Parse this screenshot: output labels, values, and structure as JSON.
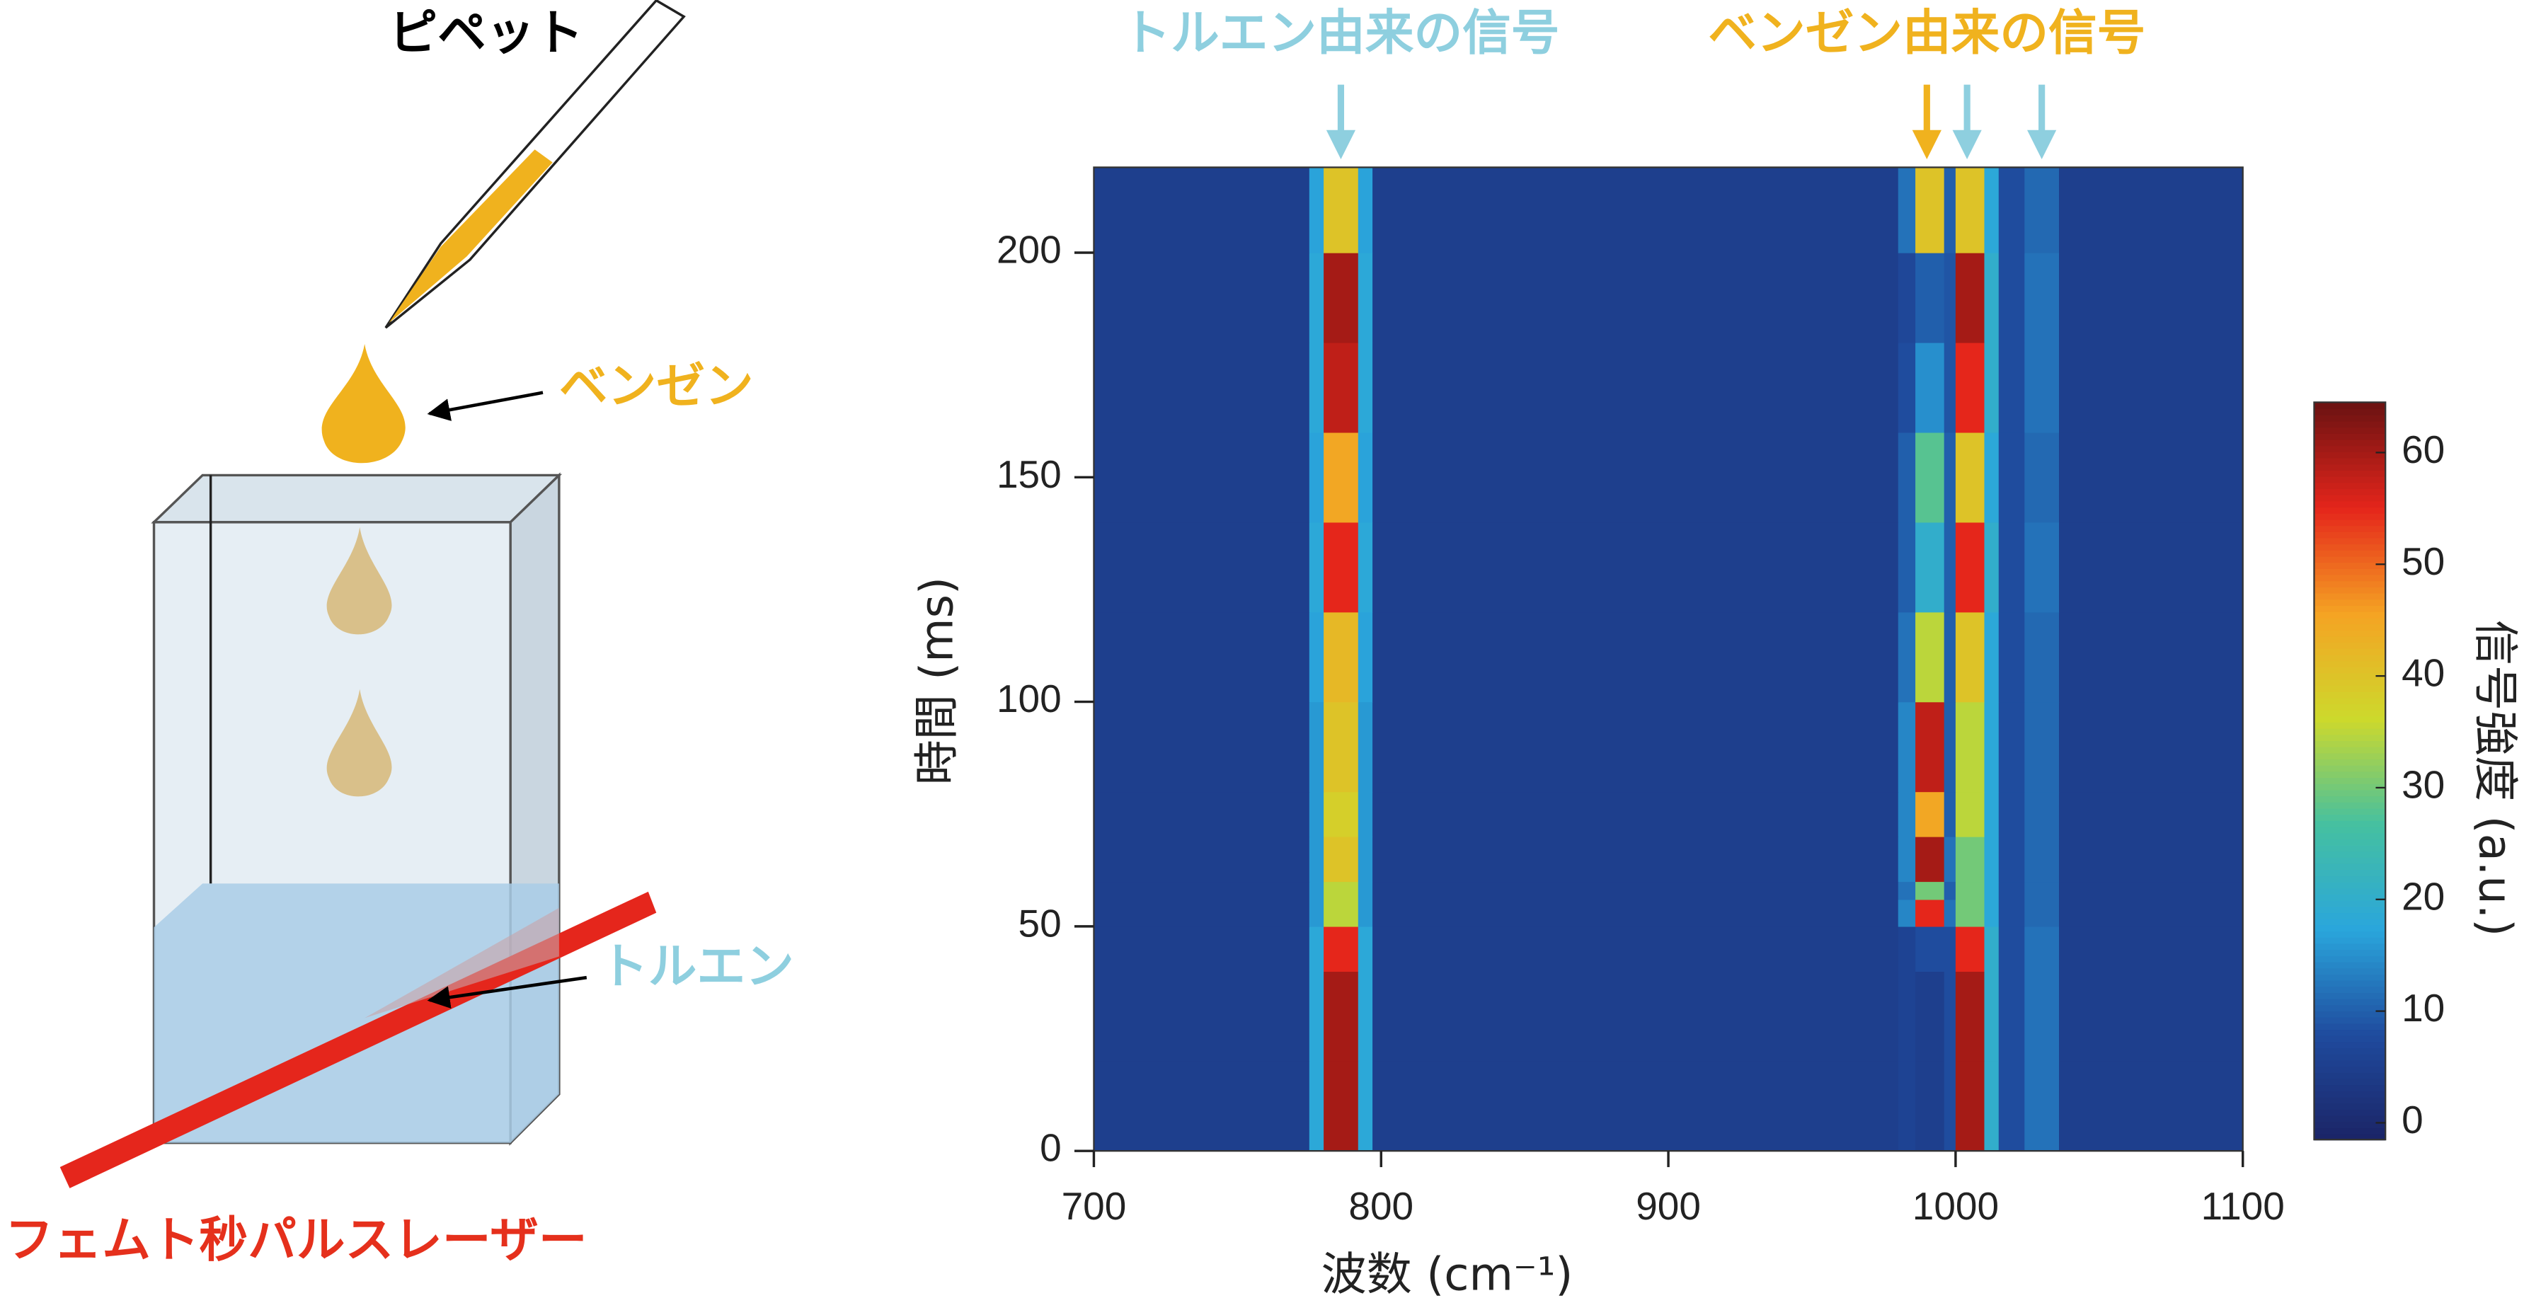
{
  "illustration": {
    "pipette": "ピペット",
    "benzene": "ベンゼン",
    "toluene": "トルエン",
    "laser": "フェムト秒パルスレーザー"
  },
  "chart_data": {
    "type": "heatmap",
    "xlabel": "波数 (cm⁻¹)",
    "ylabel": "時間 (ms)",
    "colorbar_label": "信号強度 (a.u.)",
    "annotations": [
      {
        "text": "トルエン由来の信号",
        "color": "#8ecfdf"
      },
      {
        "text": "ベンゼン由来の信号",
        "color": "#f0b21e"
      }
    ],
    "signal_arrows": [
      {
        "x": 786,
        "color": "#8ecfdf"
      },
      {
        "x": 990,
        "color": "#f0b21e"
      },
      {
        "x": 1004,
        "color": "#8ecfdf"
      },
      {
        "x": 1030,
        "color": "#8ecfdf"
      }
    ],
    "xlim": [
      700,
      1100
    ],
    "xticks": [
      700,
      800,
      900,
      1000,
      1100
    ],
    "ylim": [
      0,
      219
    ],
    "yticks": [
      0,
      50,
      100,
      150,
      200
    ],
    "clim": [
      -1.5,
      64.5
    ],
    "cticks": [
      0,
      10,
      20,
      30,
      40,
      50,
      60
    ],
    "colorscale": [
      "#1b2466",
      "#1f4b9e",
      "#2aa6dc",
      "#45c0a0",
      "#cdd92c",
      "#f5a323",
      "#e5251b",
      "#6a1212"
    ],
    "xbins": [
      700,
      775,
      780,
      792,
      797,
      980,
      986,
      996,
      1000,
      1010,
      1015,
      1024,
      1036,
      1100
    ],
    "ybins": [
      0,
      20,
      40,
      50,
      56,
      60,
      70,
      80,
      100,
      120,
      140,
      160,
      180,
      200,
      219
    ],
    "z": [
      [
        5,
        18,
        60,
        18,
        5,
        6,
        5,
        8,
        60,
        20,
        8,
        12,
        5
      ],
      [
        5,
        18,
        60,
        18,
        5,
        6,
        5,
        8,
        60,
        20,
        8,
        12,
        5
      ],
      [
        5,
        18,
        55,
        18,
        5,
        6,
        8,
        8,
        55,
        20,
        8,
        12,
        5
      ],
      [
        5,
        16,
        35,
        16,
        5,
        14,
        55,
        12,
        30,
        18,
        8,
        11,
        5
      ],
      [
        5,
        16,
        35,
        16,
        5,
        12,
        30,
        10,
        30,
        18,
        8,
        11,
        5
      ],
      [
        5,
        16,
        40,
        16,
        5,
        14,
        60,
        12,
        30,
        18,
        8,
        11,
        5
      ],
      [
        5,
        16,
        38,
        16,
        5,
        14,
        45,
        10,
        35,
        18,
        8,
        11,
        5
      ],
      [
        5,
        16,
        40,
        16,
        5,
        14,
        58,
        10,
        35,
        18,
        8,
        11,
        5
      ],
      [
        5,
        17,
        42,
        17,
        5,
        12,
        35,
        10,
        40,
        18,
        8,
        11,
        5
      ],
      [
        5,
        18,
        55,
        18,
        5,
        10,
        20,
        10,
        55,
        20,
        8,
        12,
        5
      ],
      [
        5,
        17,
        45,
        17,
        5,
        10,
        28,
        10,
        40,
        18,
        8,
        11,
        5
      ],
      [
        5,
        18,
        58,
        18,
        5,
        8,
        15,
        9,
        55,
        20,
        8,
        12,
        5
      ],
      [
        5,
        18,
        60,
        18,
        5,
        7,
        10,
        9,
        60,
        20,
        8,
        12,
        5
      ],
      [
        5,
        17,
        40,
        17,
        5,
        12,
        40,
        10,
        40,
        18,
        8,
        11,
        5
      ]
    ]
  }
}
